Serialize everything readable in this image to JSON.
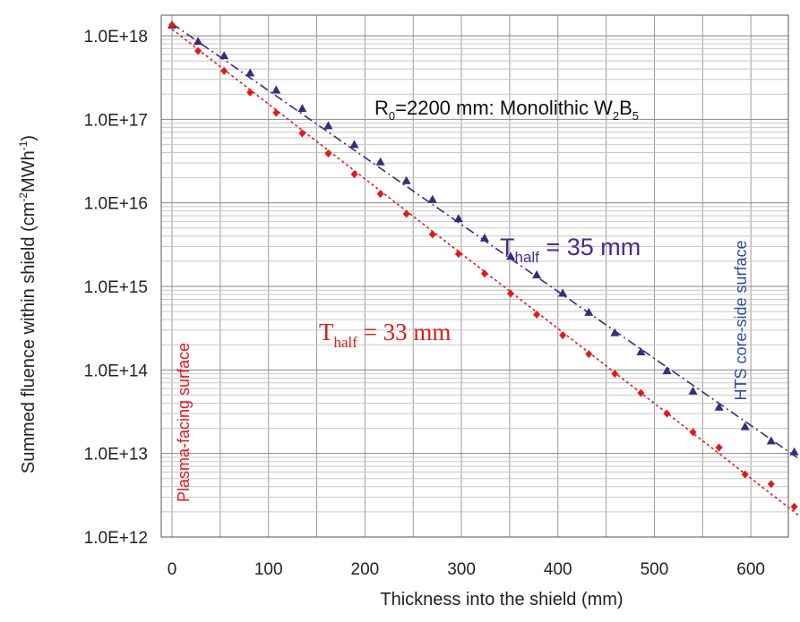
{
  "chart_data": {
    "type": "scatter",
    "xlabel": "Thickness into the shield (mm)",
    "ylabel": {
      "main": "Summed fluence within shield (cm",
      "sup1": "-2",
      "mid": "MWh",
      "sup2": "-1",
      "end": ")"
    },
    "xlim": [
      0,
      650
    ],
    "ylim": [
      1000000000000.0,
      1e+18
    ],
    "yscale": "log",
    "grid": true,
    "x_ticks": [
      "0",
      "100",
      "200",
      "300",
      "400",
      "500",
      "600"
    ],
    "x_tick_values": [
      0,
      100,
      200,
      300,
      400,
      500,
      600
    ],
    "y_ticks": [
      "1.0E+12",
      "1.0E+13",
      "1.0E+14",
      "1.0E+15",
      "1.0E+16",
      "1.0E+17",
      "1.0E+18"
    ],
    "y_tick_values": [
      1000000000000.0,
      10000000000000.0,
      100000000000000.0,
      1000000000000000.0,
      1e+16,
      1e+17,
      1e+18
    ],
    "annotation_main": {
      "r": "R",
      "r_sub": "0",
      "text": "=2200 mm: Monolithic W",
      "w_sub": "2",
      "b": "B",
      "b_sub": "5"
    },
    "annotation_purple": {
      "t": "T",
      "sub": "half",
      "text": " = 35 mm"
    },
    "annotation_red": {
      "t": "T",
      "sub": "half",
      "text": " = 33 mm"
    },
    "label_left": "Plasma-facing surface",
    "label_right": "HTS core-side surface",
    "series": [
      {
        "marker": "triangle",
        "color": "#3d2a7a",
        "x": [
          0,
          27,
          54,
          81,
          108,
          135,
          162,
          189,
          216,
          243,
          270,
          297,
          324,
          351,
          378,
          405,
          432,
          459,
          486,
          513,
          540,
          567,
          594,
          621,
          645
        ],
        "y": [
          1.35e+18,
          8.6e+17,
          5.8e+17,
          3.6e+17,
          2.25e+17,
          1.35e+17,
          8.4e+16,
          5e+16,
          3.1e+16,
          1.85e+16,
          1.1e+16,
          6500000000000000.0,
          3800000000000000.0,
          2300000000000000.0,
          1380000000000000.0,
          830000000000000.0,
          490000000000000.0,
          280000000000000.0,
          165000000000000.0,
          98000000000000.0,
          56000000000000.0,
          36000000000000.0,
          21000000000000.0,
          14200000000000.0,
          10500000000000.0
        ]
      },
      {
        "marker": "diamond",
        "color": "#e01a1a",
        "x": [
          0,
          27,
          54,
          81,
          108,
          135,
          162,
          189,
          216,
          243,
          270,
          297,
          324,
          351,
          378,
          405,
          432,
          459,
          486,
          513,
          540,
          567,
          594,
          621,
          645
        ],
        "y": [
          1.35e+18,
          6.6e+17,
          3.8e+17,
          2.1e+17,
          1.2e+17,
          6.8e+16,
          3.9e+16,
          2.2e+16,
          1.28e+16,
          7400000000000000.0,
          4200000000000000.0,
          2450000000000000.0,
          1420000000000000.0,
          820000000000000.0,
          460000000000000.0,
          260000000000000.0,
          155000000000000.0,
          90000000000000.0,
          53000000000000.0,
          30000000000000.0,
          18000000000000.0,
          11800000000000.0,
          5600000000000.0,
          4300000000000.0,
          2300000000000.0
        ]
      }
    ],
    "fits": [
      {
        "color": "#3d2a7a",
        "style": "dash-dot",
        "x": [
          0,
          650
        ],
        "y": [
          1.4e+18,
          8600000000000.0
        ]
      },
      {
        "color": "#e01a1a",
        "style": "dotted",
        "x": [
          0,
          650
        ],
        "y": [
          1.2e+18,
          1800000000000.0
        ]
      }
    ]
  }
}
